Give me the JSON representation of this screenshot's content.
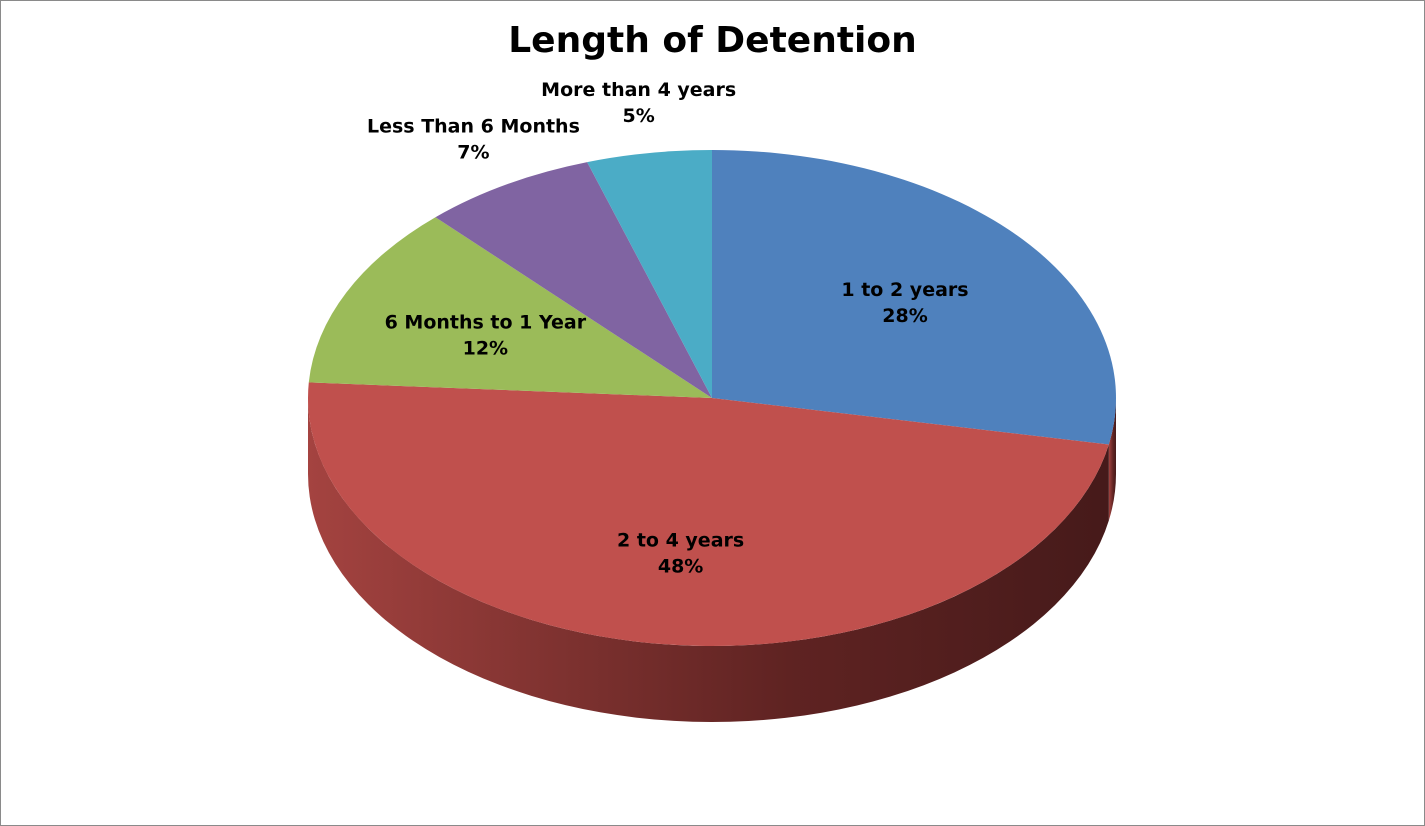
{
  "chart_data": {
    "type": "pie",
    "title": "Length of Detention",
    "slices": [
      {
        "label": "1 to 2 years",
        "value": 28,
        "display": "28%",
        "color": "#4F81BD"
      },
      {
        "label": "2 to 4 years",
        "value": 48,
        "display": "48%",
        "color": "#C0504D"
      },
      {
        "label": "6 Months to 1 Year",
        "value": 12,
        "display": "12%",
        "color": "#9BBB59"
      },
      {
        "label": "Less Than 6 Months",
        "value": 7,
        "display": "7%",
        "color": "#8064A2"
      },
      {
        "label": "More than 4 years",
        "value": 5,
        "display": "5%",
        "color": "#4BACC6"
      }
    ],
    "style": "3d"
  }
}
